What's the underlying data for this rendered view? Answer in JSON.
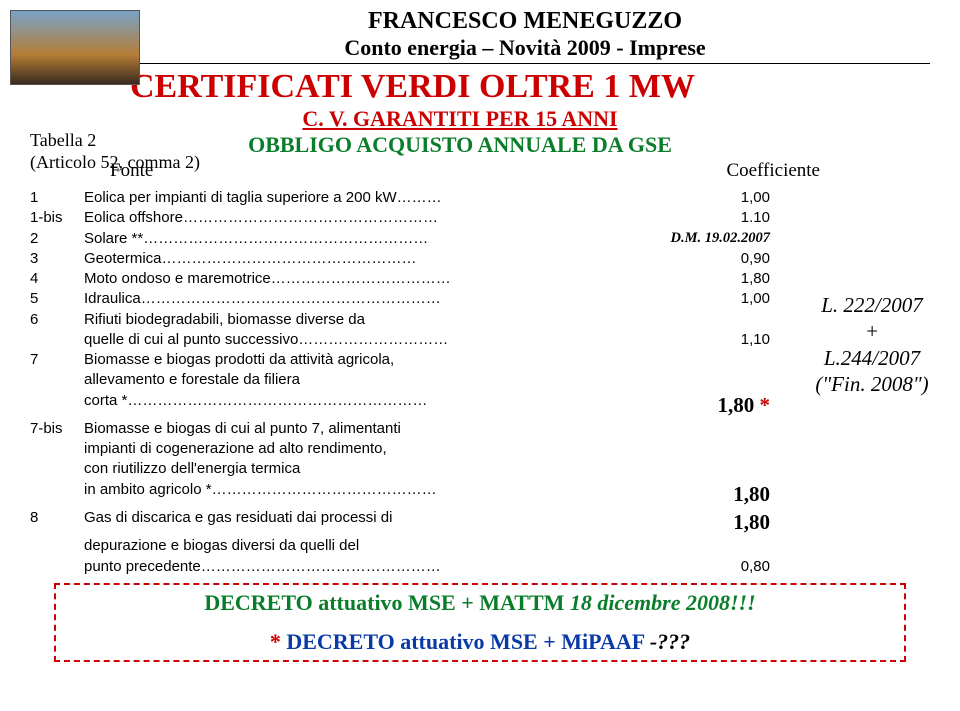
{
  "header": {
    "author": "FRANCESCO MENEGUZZO",
    "subtitle": "Conto energia – Novità 2009 - Imprese",
    "main_title": "CERTIFICATI VERDI OLTRE 1 MW",
    "sub1": "C. V. GARANTITI PER 15 ANNI",
    "sub2": "OBBLIGO ACQUISTO ANNUALE DA GSE",
    "table_ref_1": "Tabella 2",
    "table_ref_2": "(Articolo 52, comma 2)",
    "fonte": "Fonte",
    "coef": "Coefficiente",
    "colors": {
      "main_title": "#cc0000",
      "sub1": "#cc0000",
      "sub2": "#0a7d2a"
    }
  },
  "law_box": {
    "l1": "L. 222/2007",
    "plus": "+",
    "l2": "L.244/2007",
    "l3": "(\"Fin. 2008\")"
  },
  "rows": [
    {
      "idx": "1",
      "desc": "Eolica per impianti di taglia superiore a 200 kW………",
      "coef": "1,00",
      "style": "normal"
    },
    {
      "idx": "1-bis",
      "desc": "Eolica offshore……………………………………………",
      "coef": "1.10",
      "style": "normal"
    },
    {
      "idx": "2",
      "desc": "Solare **…………………………………………………",
      "coef": "D.M. 19.02.2007",
      "style": "dm"
    },
    {
      "idx": "3",
      "desc": "Geotermica……………………………………………",
      "coef": "0,90",
      "style": "normal"
    },
    {
      "idx": "4",
      "desc": "Moto ondoso e maremotrice………………………………",
      "coef": "1,80",
      "style": "normal"
    },
    {
      "idx": "5",
      "desc": "Idraulica……………………………………………………",
      "coef": "1,00",
      "style": "normal"
    },
    {
      "idx": "6",
      "desc": "Rifiuti biodegradabili, biomasse diverse da",
      "coef": "",
      "style": "normal"
    },
    {
      "idx": "",
      "desc": "quelle di cui al punto successivo…………………………",
      "coef": "1,10",
      "style": "normal"
    },
    {
      "idx": "7",
      "desc": "Biomasse e biogas prodotti da attività agricola,",
      "coef": "",
      "style": "normal"
    },
    {
      "idx": "",
      "desc": "allevamento e forestale da filiera",
      "coef": "",
      "style": "normal"
    },
    {
      "idx": "",
      "desc": "corta *……………………………………………………",
      "coef": "1,80",
      "style": "big",
      "star": "*"
    },
    {
      "idx": "7-bis",
      "desc": "Biomasse e biogas di cui al punto 7, alimentanti",
      "coef": "",
      "style": "normal"
    },
    {
      "idx": "",
      "desc": "impianti di cogenerazione ad alto rendimento,",
      "coef": "",
      "style": "normal"
    },
    {
      "idx": "",
      "desc": "con riutilizzo dell'energia termica",
      "coef": "",
      "style": "normal"
    },
    {
      "idx": "",
      "desc": "in ambito agricolo *………………………………………",
      "coef": "1,80",
      "style": "big"
    },
    {
      "idx": "8",
      "desc": "Gas di discarica e gas residuati dai processi di",
      "coef": "1,80",
      "style": "big"
    },
    {
      "idx": "",
      "desc": "depurazione e biogas diversi da quelli del",
      "coef": "",
      "style": "normal"
    },
    {
      "idx": "",
      "desc": "punto precedente…………………………………………",
      "coef": "0,80",
      "style": "normal"
    }
  ],
  "decree": {
    "line1a": "DECRETO attuativo MSE + MATTM ",
    "line1b": "18 dicembre 2008!!!",
    "line2_star": "*",
    "line2a": "DECRETO attuativo MSE + MiPAAF  ",
    "line2b": "-???",
    "colors": {
      "line1": "#0a7d2a",
      "line2": "#0a3aa8",
      "star": "#cc0000",
      "q": "#000"
    }
  }
}
